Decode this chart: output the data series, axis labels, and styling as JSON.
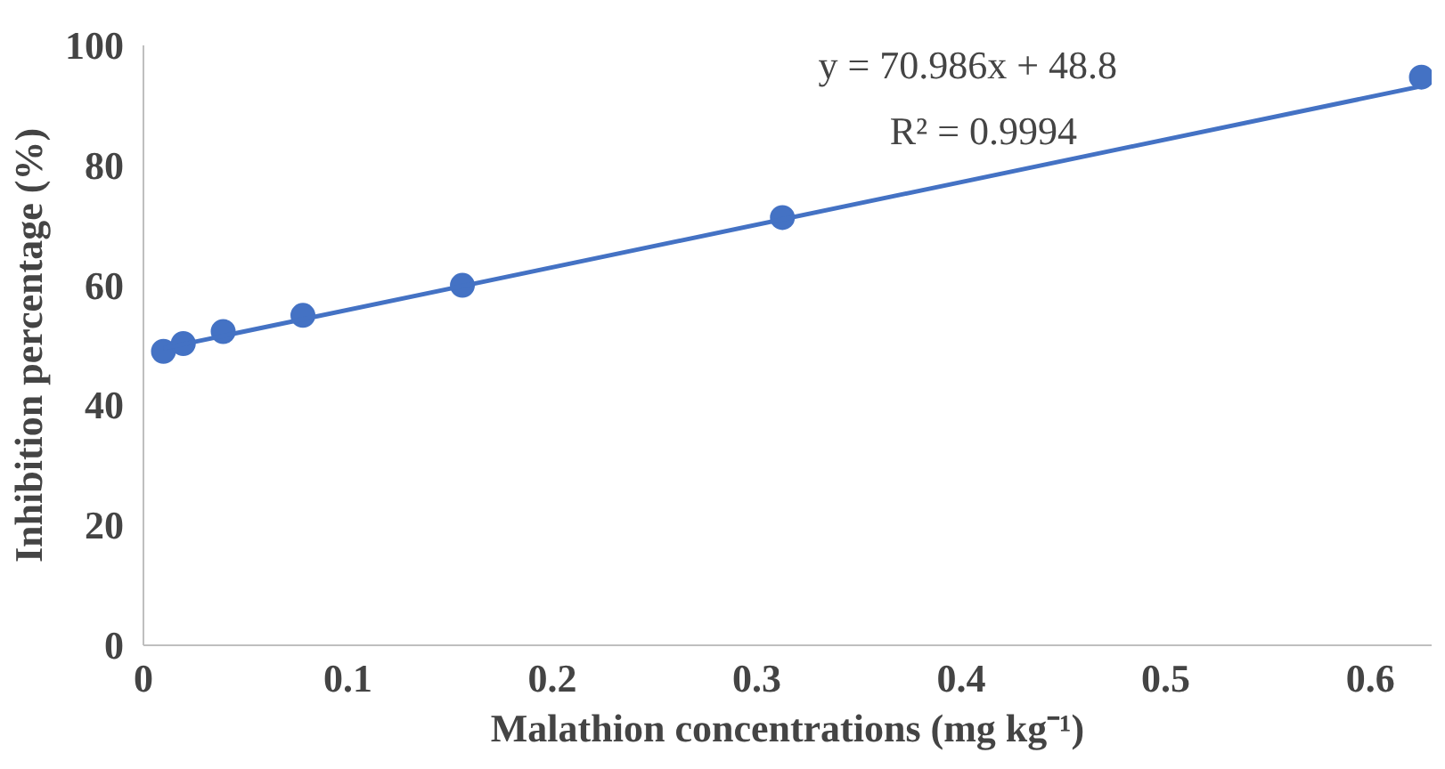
{
  "chart_data": {
    "type": "scatter",
    "xlabel": "Malathion concentrations (mg kg⁻¹)",
    "ylabel": "Inhibition percentage (%)",
    "x": [
      0.0098,
      0.0195,
      0.039,
      0.078,
      0.156,
      0.3125,
      0.625
    ],
    "series": [
      {
        "color": "#4472c4",
        "marker": "circle",
        "values": [
          49,
          50.3,
          52.3,
          55,
          60,
          71.3,
          94.7
        ]
      },
      {
        "type": "line",
        "color": "#4472c4",
        "x": [
          0.0098,
          0.625
        ],
        "values": [
          49.5,
          93.2
        ]
      }
    ],
    "annotations": [
      "y = 70.986x + 48.8",
      "R² = 0.9994"
    ],
    "xlim": [
      0,
      0.63
    ],
    "xticks": [
      0,
      0.1,
      0.2,
      0.3,
      0.4,
      0.5,
      0.6
    ],
    "ylim": [
      0,
      100
    ],
    "yticks": [
      0,
      20,
      40,
      60,
      80,
      100
    ]
  }
}
